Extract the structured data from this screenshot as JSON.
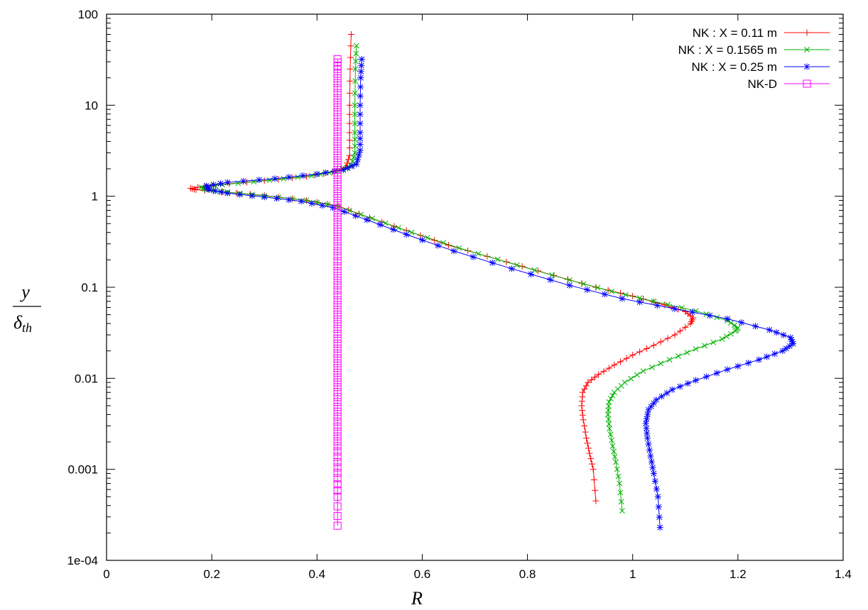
{
  "chart_data": {
    "type": "line",
    "xlabel": "R",
    "ylabel": {
      "numerator": "y",
      "denominator_base": "δ",
      "denominator_sub": "th"
    },
    "xlim": [
      0,
      1.4
    ],
    "ylim": [
      0.0001,
      100
    ],
    "y_scale": "log",
    "grid": false,
    "legend_position": "top-right",
    "x_ticks": [
      "0",
      "0.2",
      "0.4",
      "0.6",
      "0.8",
      "1",
      "1.2",
      "1.4"
    ],
    "y_ticks": [
      "1e-04",
      "0.001",
      "0.01",
      "0.1",
      "1",
      "10",
      "100"
    ],
    "series": [
      {
        "name": "NK : X = 0.11 m",
        "color": "#ff0000",
        "marker": "plus",
        "points": [
          [
            0.93,
            0.00045
          ],
          [
            0.925,
            0.001
          ],
          [
            0.918,
            0.0015
          ],
          [
            0.912,
            0.0022
          ],
          [
            0.906,
            0.0035
          ],
          [
            0.903,
            0.005
          ],
          [
            0.905,
            0.007
          ],
          [
            0.915,
            0.009
          ],
          [
            0.935,
            0.011
          ],
          [
            0.965,
            0.014
          ],
          [
            1.0,
            0.018
          ],
          [
            1.04,
            0.023
          ],
          [
            1.08,
            0.03
          ],
          [
            1.11,
            0.04
          ],
          [
            1.115,
            0.046
          ],
          [
            1.1,
            0.054
          ],
          [
            1.06,
            0.064
          ],
          [
            1.0,
            0.08
          ],
          [
            0.93,
            0.1
          ],
          [
            0.85,
            0.135
          ],
          [
            0.76,
            0.19
          ],
          [
            0.65,
            0.29
          ],
          [
            0.57,
            0.42
          ],
          [
            0.5,
            0.58
          ],
          [
            0.44,
            0.78
          ],
          [
            0.38,
            0.9
          ],
          [
            0.3,
            1.02
          ],
          [
            0.22,
            1.12
          ],
          [
            0.17,
            1.18
          ],
          [
            0.16,
            1.22
          ],
          [
            0.2,
            1.32
          ],
          [
            0.3,
            1.48
          ],
          [
            0.38,
            1.65
          ],
          [
            0.43,
            1.85
          ],
          [
            0.455,
            2.1
          ],
          [
            0.462,
            2.8
          ],
          [
            0.462,
            5.0
          ],
          [
            0.462,
            10.0
          ],
          [
            0.463,
            25.0
          ],
          [
            0.465,
            60.0
          ]
        ]
      },
      {
        "name": "NK : X = 0.1565 m",
        "color": "#00b000",
        "marker": "cross",
        "points": [
          [
            0.98,
            0.00035
          ],
          [
            0.975,
            0.0007
          ],
          [
            0.968,
            0.0012
          ],
          [
            0.962,
            0.0018
          ],
          [
            0.956,
            0.0028
          ],
          [
            0.953,
            0.004
          ],
          [
            0.955,
            0.0055
          ],
          [
            0.965,
            0.007
          ],
          [
            0.985,
            0.009
          ],
          [
            1.02,
            0.012
          ],
          [
            1.07,
            0.016
          ],
          [
            1.12,
            0.021
          ],
          [
            1.17,
            0.027
          ],
          [
            1.195,
            0.033
          ],
          [
            1.2,
            0.036
          ],
          [
            1.18,
            0.043
          ],
          [
            1.12,
            0.055
          ],
          [
            1.04,
            0.07
          ],
          [
            0.96,
            0.09
          ],
          [
            0.88,
            0.12
          ],
          [
            0.78,
            0.175
          ],
          [
            0.67,
            0.27
          ],
          [
            0.58,
            0.4
          ],
          [
            0.505,
            0.57
          ],
          [
            0.44,
            0.77
          ],
          [
            0.38,
            0.9
          ],
          [
            0.3,
            1.01
          ],
          [
            0.23,
            1.11
          ],
          [
            0.19,
            1.18
          ],
          [
            0.18,
            1.25
          ],
          [
            0.22,
            1.34
          ],
          [
            0.31,
            1.5
          ],
          [
            0.39,
            1.68
          ],
          [
            0.44,
            1.88
          ],
          [
            0.465,
            2.15
          ],
          [
            0.472,
            3.0
          ],
          [
            0.472,
            5.0
          ],
          [
            0.472,
            10.0
          ],
          [
            0.473,
            25.0
          ],
          [
            0.475,
            45.0
          ]
        ]
      },
      {
        "name": "NK : X = 0.25 m",
        "color": "#0000ff",
        "marker": "star",
        "points": [
          [
            1.052,
            0.00023
          ],
          [
            1.048,
            0.0005
          ],
          [
            1.04,
            0.0009
          ],
          [
            1.034,
            0.0014
          ],
          [
            1.028,
            0.0022
          ],
          [
            1.025,
            0.0032
          ],
          [
            1.03,
            0.0045
          ],
          [
            1.045,
            0.0058
          ],
          [
            1.075,
            0.0075
          ],
          [
            1.12,
            0.0095
          ],
          [
            1.18,
            0.0125
          ],
          [
            1.24,
            0.016
          ],
          [
            1.285,
            0.02
          ],
          [
            1.305,
            0.024
          ],
          [
            1.3,
            0.028
          ],
          [
            1.26,
            0.034
          ],
          [
            1.18,
            0.045
          ],
          [
            1.08,
            0.058
          ],
          [
            0.98,
            0.075
          ],
          [
            0.88,
            0.105
          ],
          [
            0.77,
            0.16
          ],
          [
            0.66,
            0.25
          ],
          [
            0.57,
            0.38
          ],
          [
            0.495,
            0.55
          ],
          [
            0.43,
            0.75
          ],
          [
            0.37,
            0.88
          ],
          [
            0.3,
            0.98
          ],
          [
            0.23,
            1.08
          ],
          [
            0.195,
            1.18
          ],
          [
            0.19,
            1.3
          ],
          [
            0.23,
            1.42
          ],
          [
            0.32,
            1.56
          ],
          [
            0.4,
            1.75
          ],
          [
            0.45,
            1.95
          ],
          [
            0.475,
            2.25
          ],
          [
            0.482,
            3.2
          ],
          [
            0.482,
            5.0
          ],
          [
            0.482,
            10.0
          ],
          [
            0.483,
            20.0
          ],
          [
            0.485,
            32.0
          ]
        ]
      },
      {
        "name": "NK-D",
        "color": "#ff00ff",
        "marker": "square",
        "points": [
          [
            0.439,
            0.00024
          ],
          [
            0.439,
            0.0005
          ],
          [
            0.439,
            0.0008
          ],
          [
            0.439,
            0.0012
          ],
          [
            0.439,
            0.0018
          ],
          [
            0.439,
            0.0026
          ],
          [
            0.439,
            0.0038
          ],
          [
            0.439,
            0.0055
          ],
          [
            0.439,
            0.008
          ],
          [
            0.439,
            0.0115
          ],
          [
            0.439,
            0.0165
          ],
          [
            0.439,
            0.024
          ],
          [
            0.439,
            0.035
          ],
          [
            0.439,
            0.05
          ],
          [
            0.439,
            0.072
          ],
          [
            0.439,
            0.105
          ],
          [
            0.439,
            0.15
          ],
          [
            0.439,
            0.22
          ],
          [
            0.439,
            0.32
          ],
          [
            0.439,
            0.46
          ],
          [
            0.439,
            0.66
          ],
          [
            0.439,
            0.95
          ],
          [
            0.439,
            1.35
          ],
          [
            0.439,
            1.95
          ],
          [
            0.439,
            2.8
          ],
          [
            0.439,
            4.0
          ],
          [
            0.439,
            5.8
          ],
          [
            0.439,
            8.4
          ],
          [
            0.439,
            12.0
          ],
          [
            0.439,
            17.5
          ],
          [
            0.439,
            25.0
          ],
          [
            0.439,
            32.0
          ]
        ]
      }
    ]
  }
}
